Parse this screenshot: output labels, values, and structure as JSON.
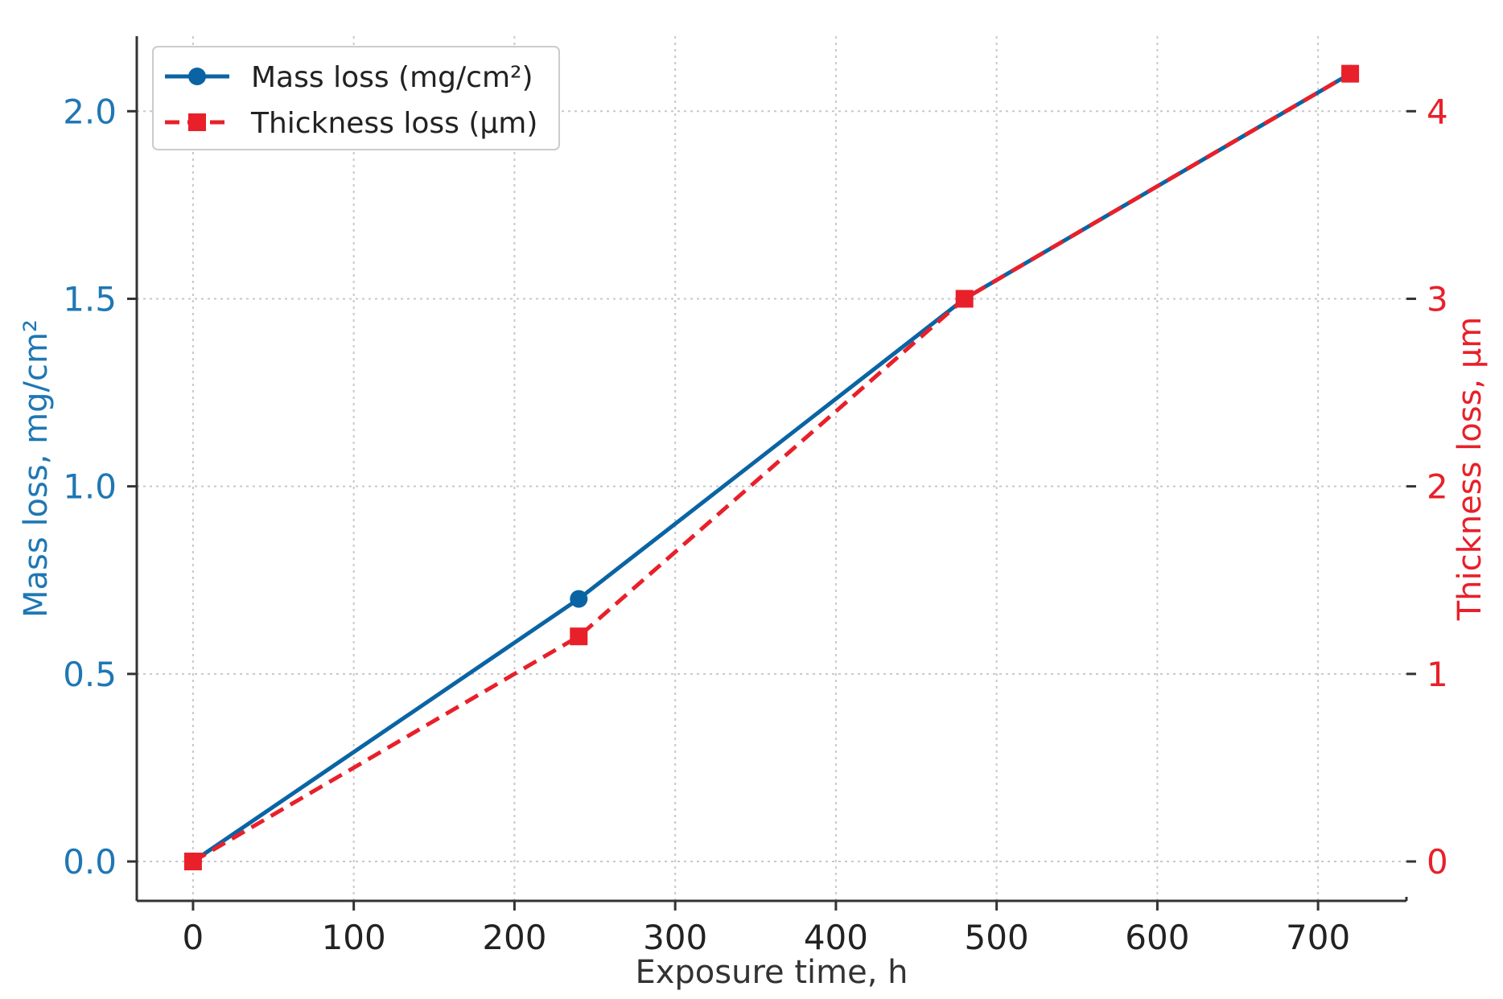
{
  "chart_data": {
    "type": "line",
    "title": "",
    "x": [
      0,
      240,
      480,
      720
    ],
    "xlabel": "Exposure time, h",
    "xlim": [
      -35,
      755
    ],
    "xticks": [
      0,
      100,
      200,
      300,
      400,
      500,
      600,
      700
    ],
    "y_left": {
      "label": "Mass loss, mg/cm²",
      "lim": [
        -0.105,
        2.2
      ],
      "ticks": [
        0.0,
        0.5,
        1.0,
        1.5,
        2.0
      ],
      "tick_labels": [
        "0.0",
        "0.5",
        "1.0",
        "1.5",
        "2.0"
      ],
      "color": "#1f77b4"
    },
    "y_right": {
      "label": "Thickness loss, μm",
      "lim": [
        -0.21,
        4.4
      ],
      "ticks": [
        0,
        1,
        2,
        3,
        4
      ],
      "tick_labels": [
        "0",
        "1",
        "2",
        "3",
        "4"
      ],
      "color": "#e8202a"
    },
    "series": [
      {
        "name": "Mass loss (mg/cm²)",
        "axis": "left",
        "values": [
          0.0,
          0.7,
          1.5,
          2.1
        ],
        "color": "#0a64a4",
        "line_style": "solid",
        "marker": "circle"
      },
      {
        "name": "Thickness loss (μm)",
        "axis": "right",
        "values": [
          0.0,
          1.2,
          3.0,
          4.2
        ],
        "color": "#e8202a",
        "line_style": "dashed",
        "marker": "square"
      }
    ],
    "grid": true,
    "legend_position": "top-left"
  }
}
